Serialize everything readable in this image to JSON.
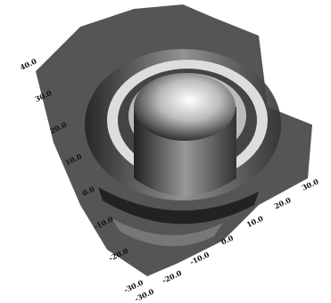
{
  "chart_data": {
    "type": "surface3d",
    "yticks": [
      {
        "value": -30,
        "label": "-30.0"
      },
      {
        "value": -20,
        "label": "-20.0"
      },
      {
        "value": -10,
        "label": "-10.0"
      },
      {
        "value": 0,
        "label": "0.0"
      },
      {
        "value": 10,
        "label": "10.0"
      },
      {
        "value": 20,
        "label": "20.0"
      },
      {
        "value": 30,
        "label": "30.0"
      },
      {
        "value": 40,
        "label": "40.0"
      }
    ],
    "ylim": [
      -30,
      40
    ],
    "xticks": [
      {
        "value": -30,
        "label": "-30.0"
      },
      {
        "value": -20,
        "label": "-20.0"
      },
      {
        "value": -10,
        "label": "-10.0"
      },
      {
        "value": 0,
        "label": "0.0"
      },
      {
        "value": 10,
        "label": "10.0"
      },
      {
        "value": 20,
        "label": "20.0"
      },
      {
        "value": 30,
        "label": "30.0"
      }
    ],
    "xlim": [
      -30,
      30
    ]
  }
}
